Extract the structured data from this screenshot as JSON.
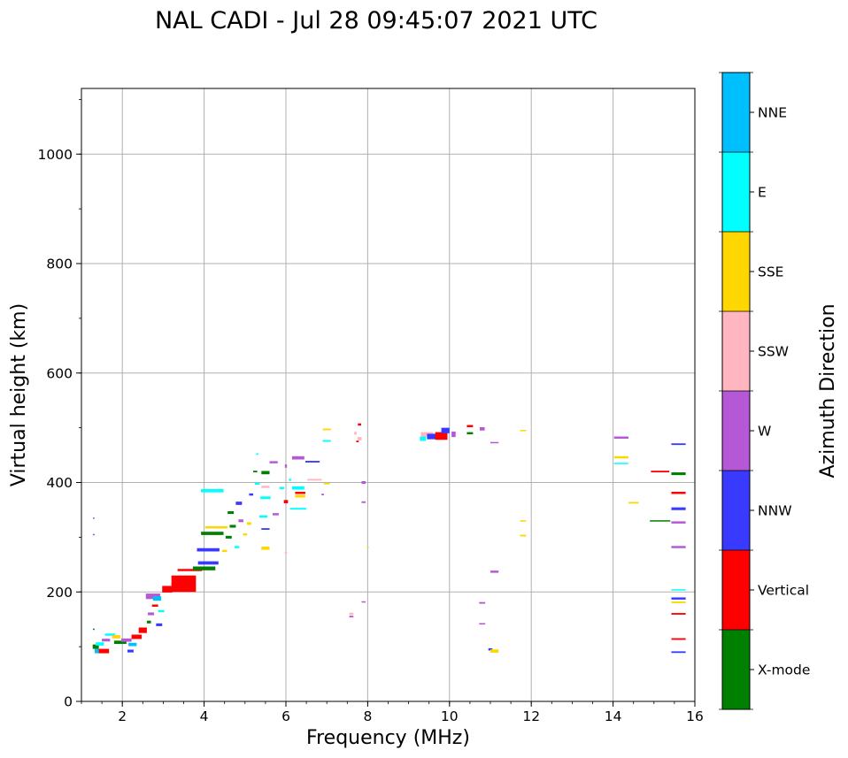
{
  "chart_data": {
    "type": "scatter",
    "title": "NAL CADI - Jul 28 09:45:07 2021 UTC",
    "xlabel": "Frequency (MHz)",
    "ylabel": "Virtual height (km)",
    "xlim": [
      1,
      16
    ],
    "ylim": [
      0,
      1120
    ],
    "xticks": [
      2,
      4,
      6,
      8,
      10,
      12,
      14,
      16
    ],
    "yticks": [
      0,
      200,
      400,
      600,
      800,
      1000
    ],
    "xticks_minor_step": 0.5,
    "yticks_minor_step": 100,
    "grid": true,
    "colorbar": {
      "label": "Azimuth Direction",
      "categories": [
        {
          "name": "X-mode",
          "color": "#008000"
        },
        {
          "name": "Vertical",
          "color": "#ff0000"
        },
        {
          "name": "NNW",
          "color": "#3a3aff"
        },
        {
          "name": "W",
          "color": "#b558d6"
        },
        {
          "name": "SSW",
          "color": "#ffb6c1"
        },
        {
          "name": "SSE",
          "color": "#ffd700"
        },
        {
          "name": "E",
          "color": "#00ffff"
        },
        {
          "name": "NNE",
          "color": "#00bfff"
        }
      ]
    },
    "echoes": [
      {
        "f": 1.3,
        "h": 335,
        "df": 0.03,
        "dh": 2,
        "az": "NNW"
      },
      {
        "f": 1.3,
        "h": 305,
        "df": 0.03,
        "dh": 2,
        "az": "NNW"
      },
      {
        "f": 1.3,
        "h": 132,
        "df": 0.04,
        "dh": 2,
        "az": "X-mode"
      },
      {
        "f": 1.35,
        "h": 100,
        "df": 0.15,
        "dh": 8,
        "az": "X-mode"
      },
      {
        "f": 1.4,
        "h": 92,
        "df": 0.15,
        "dh": 8,
        "az": "NNE"
      },
      {
        "f": 1.55,
        "h": 92,
        "df": 0.25,
        "dh": 8,
        "az": "Vertical"
      },
      {
        "f": 1.45,
        "h": 105,
        "df": 0.2,
        "dh": 6,
        "az": "E"
      },
      {
        "f": 1.6,
        "h": 112,
        "df": 0.2,
        "dh": 5,
        "az": "W"
      },
      {
        "f": 1.7,
        "h": 122,
        "df": 0.25,
        "dh": 4,
        "az": "E"
      },
      {
        "f": 1.85,
        "h": 118,
        "df": 0.2,
        "dh": 6,
        "az": "SSE"
      },
      {
        "f": 1.95,
        "h": 108,
        "df": 0.3,
        "dh": 6,
        "az": "X-mode"
      },
      {
        "f": 2.1,
        "h": 112,
        "df": 0.25,
        "dh": 6,
        "az": "W"
      },
      {
        "f": 2.2,
        "h": 92,
        "df": 0.15,
        "dh": 5,
        "az": "NNW"
      },
      {
        "f": 2.25,
        "h": 104,
        "df": 0.2,
        "dh": 6,
        "az": "NNE"
      },
      {
        "f": 2.35,
        "h": 118,
        "df": 0.25,
        "dh": 8,
        "az": "Vertical"
      },
      {
        "f": 2.5,
        "h": 130,
        "df": 0.2,
        "dh": 10,
        "az": "Vertical"
      },
      {
        "f": 2.65,
        "h": 145,
        "df": 0.1,
        "dh": 5,
        "az": "X-mode"
      },
      {
        "f": 2.7,
        "h": 160,
        "df": 0.15,
        "dh": 5,
        "az": "W"
      },
      {
        "f": 2.75,
        "h": 192,
        "df": 0.35,
        "dh": 10,
        "az": "W"
      },
      {
        "f": 2.85,
        "h": 188,
        "df": 0.2,
        "dh": 8,
        "az": "NNE"
      },
      {
        "f": 2.8,
        "h": 175,
        "df": 0.15,
        "dh": 4,
        "az": "Vertical"
      },
      {
        "f": 2.9,
        "h": 140,
        "df": 0.15,
        "dh": 5,
        "az": "NNW"
      },
      {
        "f": 2.95,
        "h": 165,
        "df": 0.15,
        "dh": 4,
        "az": "E"
      },
      {
        "f": 3.1,
        "h": 205,
        "df": 0.25,
        "dh": 12,
        "az": "Vertical"
      },
      {
        "f": 3.3,
        "h": 215,
        "df": 0.15,
        "dh": 10,
        "az": "Vertical"
      },
      {
        "f": 3.5,
        "h": 215,
        "df": 0.6,
        "dh": 30,
        "az": "Vertical"
      },
      {
        "f": 3.65,
        "h": 240,
        "df": 0.6,
        "dh": 4,
        "az": "Vertical"
      },
      {
        "f": 4.0,
        "h": 243,
        "df": 0.55,
        "dh": 7,
        "az": "X-mode"
      },
      {
        "f": 4.1,
        "h": 253,
        "df": 0.5,
        "dh": 6,
        "az": "NNW"
      },
      {
        "f": 4.1,
        "h": 277,
        "df": 0.55,
        "dh": 6,
        "az": "NNW"
      },
      {
        "f": 4.2,
        "h": 307,
        "df": 0.55,
        "dh": 6,
        "az": "X-mode"
      },
      {
        "f": 4.3,
        "h": 318,
        "df": 0.55,
        "dh": 4,
        "az": "SSE"
      },
      {
        "f": 4.2,
        "h": 385,
        "df": 0.55,
        "dh": 6,
        "az": "E"
      },
      {
        "f": 4.5,
        "h": 275,
        "df": 0.12,
        "dh": 4,
        "az": "SSE"
      },
      {
        "f": 4.6,
        "h": 300,
        "df": 0.15,
        "dh": 5,
        "az": "X-mode"
      },
      {
        "f": 4.7,
        "h": 320,
        "df": 0.15,
        "dh": 5,
        "az": "X-mode"
      },
      {
        "f": 4.65,
        "h": 345,
        "df": 0.15,
        "dh": 5,
        "az": "X-mode"
      },
      {
        "f": 4.8,
        "h": 282,
        "df": 0.12,
        "dh": 4,
        "az": "E"
      },
      {
        "f": 4.9,
        "h": 330,
        "df": 0.12,
        "dh": 5,
        "az": "W"
      },
      {
        "f": 4.85,
        "h": 362,
        "df": 0.15,
        "dh": 6,
        "az": "NNW"
      },
      {
        "f": 5.0,
        "h": 305,
        "df": 0.1,
        "dh": 4,
        "az": "SSE"
      },
      {
        "f": 5.1,
        "h": 325,
        "df": 0.1,
        "dh": 5,
        "az": "SSE"
      },
      {
        "f": 5.15,
        "h": 378,
        "df": 0.1,
        "dh": 4,
        "az": "NNW"
      },
      {
        "f": 5.3,
        "h": 398,
        "df": 0.12,
        "dh": 4,
        "az": "E"
      },
      {
        "f": 5.25,
        "h": 420,
        "df": 0.1,
        "dh": 3,
        "az": "X-mode"
      },
      {
        "f": 5.3,
        "h": 452,
        "df": 0.05,
        "dh": 3,
        "az": "E"
      },
      {
        "f": 5.5,
        "h": 418,
        "df": 0.2,
        "dh": 6,
        "az": "X-mode"
      },
      {
        "f": 5.5,
        "h": 392,
        "df": 0.2,
        "dh": 4,
        "az": "SSW"
      },
      {
        "f": 5.5,
        "h": 372,
        "df": 0.25,
        "dh": 5,
        "az": "E"
      },
      {
        "f": 5.45,
        "h": 338,
        "df": 0.2,
        "dh": 4,
        "az": "E"
      },
      {
        "f": 5.5,
        "h": 315,
        "df": 0.2,
        "dh": 3,
        "az": "NNW"
      },
      {
        "f": 5.5,
        "h": 280,
        "df": 0.2,
        "dh": 6,
        "az": "SSE"
      },
      {
        "f": 5.7,
        "h": 437,
        "df": 0.2,
        "dh": 4,
        "az": "W"
      },
      {
        "f": 5.75,
        "h": 342,
        "df": 0.15,
        "dh": 4,
        "az": "W"
      },
      {
        "f": 5.9,
        "h": 390,
        "df": 0.12,
        "dh": 4,
        "az": "E"
      },
      {
        "f": 6.0,
        "h": 365,
        "df": 0.1,
        "dh": 6,
        "az": "Vertical"
      },
      {
        "f": 6.0,
        "h": 272,
        "df": 0.06,
        "dh": 3,
        "az": "SSW"
      },
      {
        "f": 6.0,
        "h": 430,
        "df": 0.05,
        "dh": 6,
        "az": "W"
      },
      {
        "f": 6.1,
        "h": 405,
        "df": 0.05,
        "dh": 4,
        "az": "E"
      },
      {
        "f": 6.3,
        "h": 445,
        "df": 0.3,
        "dh": 6,
        "az": "W"
      },
      {
        "f": 6.3,
        "h": 390,
        "df": 0.3,
        "dh": 6,
        "az": "E"
      },
      {
        "f": 6.35,
        "h": 381,
        "df": 0.25,
        "dh": 4,
        "az": "Vertical"
      },
      {
        "f": 6.35,
        "h": 375,
        "df": 0.25,
        "dh": 5,
        "az": "SSE"
      },
      {
        "f": 6.3,
        "h": 352,
        "df": 0.4,
        "dh": 3,
        "az": "E"
      },
      {
        "f": 6.65,
        "h": 438,
        "df": 0.35,
        "dh": 3,
        "az": "NNW"
      },
      {
        "f": 6.7,
        "h": 405,
        "df": 0.35,
        "dh": 3,
        "az": "SSW"
      },
      {
        "f": 6.9,
        "h": 378,
        "df": 0.06,
        "dh": 3,
        "az": "W"
      },
      {
        "f": 7.0,
        "h": 497,
        "df": 0.2,
        "dh": 3,
        "az": "SSE"
      },
      {
        "f": 7.0,
        "h": 476,
        "df": 0.2,
        "dh": 3,
        "az": "E"
      },
      {
        "f": 7.0,
        "h": 398,
        "df": 0.15,
        "dh": 3,
        "az": "SSE"
      },
      {
        "f": 7.6,
        "h": 160,
        "df": 0.1,
        "dh": 4,
        "az": "SSW"
      },
      {
        "f": 7.6,
        "h": 155,
        "df": 0.1,
        "dh": 3,
        "az": "W"
      },
      {
        "f": 7.7,
        "h": 490,
        "df": 0.06,
        "dh": 5,
        "az": "SSW"
      },
      {
        "f": 7.8,
        "h": 506,
        "df": 0.08,
        "dh": 4,
        "az": "Vertical"
      },
      {
        "f": 7.8,
        "h": 480,
        "df": 0.1,
        "dh": 6,
        "az": "SSW"
      },
      {
        "f": 7.75,
        "h": 475,
        "df": 0.06,
        "dh": 3,
        "az": "Vertical"
      },
      {
        "f": 7.9,
        "h": 400,
        "df": 0.1,
        "dh": 5,
        "az": "W"
      },
      {
        "f": 7.9,
        "h": 364,
        "df": 0.1,
        "dh": 3,
        "az": "W"
      },
      {
        "f": 7.9,
        "h": 182,
        "df": 0.1,
        "dh": 2,
        "az": "W"
      },
      {
        "f": 8.0,
        "h": 282,
        "df": 0.05,
        "dh": 2,
        "az": "SSE"
      },
      {
        "f": 9.35,
        "h": 480,
        "df": 0.15,
        "dh": 8,
        "az": "E"
      },
      {
        "f": 9.45,
        "h": 488,
        "df": 0.3,
        "dh": 8,
        "az": "SSW"
      },
      {
        "f": 9.6,
        "h": 484,
        "df": 0.3,
        "dh": 10,
        "az": "NNW"
      },
      {
        "f": 9.8,
        "h": 485,
        "df": 0.3,
        "dh": 14,
        "az": "Vertical"
      },
      {
        "f": 9.9,
        "h": 495,
        "df": 0.2,
        "dh": 10,
        "az": "NNW"
      },
      {
        "f": 10.1,
        "h": 488,
        "df": 0.1,
        "dh": 10,
        "az": "W"
      },
      {
        "f": 10.5,
        "h": 503,
        "df": 0.15,
        "dh": 4,
        "az": "Vertical"
      },
      {
        "f": 10.5,
        "h": 490,
        "df": 0.15,
        "dh": 4,
        "az": "X-mode"
      },
      {
        "f": 10.8,
        "h": 498,
        "df": 0.12,
        "dh": 6,
        "az": "W"
      },
      {
        "f": 10.8,
        "h": 180,
        "df": 0.15,
        "dh": 3,
        "az": "W"
      },
      {
        "f": 10.8,
        "h": 142,
        "df": 0.15,
        "dh": 2,
        "az": "W"
      },
      {
        "f": 11.0,
        "h": 95,
        "df": 0.1,
        "dh": 4,
        "az": "NNW"
      },
      {
        "f": 11.1,
        "h": 92,
        "df": 0.2,
        "dh": 6,
        "az": "SSE"
      },
      {
        "f": 11.1,
        "h": 473,
        "df": 0.2,
        "dh": 2,
        "az": "W"
      },
      {
        "f": 11.1,
        "h": 237,
        "df": 0.2,
        "dh": 4,
        "az": "W"
      },
      {
        "f": 11.8,
        "h": 495,
        "df": 0.15,
        "dh": 2,
        "az": "SSE"
      },
      {
        "f": 11.8,
        "h": 330,
        "df": 0.15,
        "dh": 2,
        "az": "SSE"
      },
      {
        "f": 11.8,
        "h": 303,
        "df": 0.15,
        "dh": 3,
        "az": "SSE"
      },
      {
        "f": 14.2,
        "h": 482,
        "df": 0.35,
        "dh": 4,
        "az": "W"
      },
      {
        "f": 14.2,
        "h": 446,
        "df": 0.35,
        "dh": 4,
        "az": "SSE"
      },
      {
        "f": 14.2,
        "h": 435,
        "df": 0.35,
        "dh": 2,
        "az": "E"
      },
      {
        "f": 14.5,
        "h": 363,
        "df": 0.25,
        "dh": 3,
        "az": "SSE"
      },
      {
        "f": 15.15,
        "h": 420,
        "df": 0.45,
        "dh": 3,
        "az": "Vertical"
      },
      {
        "f": 15.15,
        "h": 330,
        "df": 0.5,
        "dh": 2,
        "az": "X-mode"
      },
      {
        "f": 15.6,
        "h": 470,
        "df": 0.35,
        "dh": 3,
        "az": "NNW"
      },
      {
        "f": 15.6,
        "h": 416,
        "df": 0.35,
        "dh": 5,
        "az": "X-mode"
      },
      {
        "f": 15.6,
        "h": 381,
        "df": 0.35,
        "dh": 4,
        "az": "Vertical"
      },
      {
        "f": 15.6,
        "h": 352,
        "df": 0.35,
        "dh": 5,
        "az": "NNW"
      },
      {
        "f": 15.6,
        "h": 327,
        "df": 0.35,
        "dh": 4,
        "az": "W"
      },
      {
        "f": 15.6,
        "h": 282,
        "df": 0.35,
        "dh": 4,
        "az": "W"
      },
      {
        "f": 15.6,
        "h": 204,
        "df": 0.35,
        "dh": 2,
        "az": "E"
      },
      {
        "f": 15.6,
        "h": 188,
        "df": 0.35,
        "dh": 4,
        "az": "NNW"
      },
      {
        "f": 15.6,
        "h": 181,
        "df": 0.35,
        "dh": 3,
        "az": "SSE"
      },
      {
        "f": 15.6,
        "h": 160,
        "df": 0.35,
        "dh": 3,
        "az": "Vertical"
      },
      {
        "f": 15.6,
        "h": 114,
        "df": 0.35,
        "dh": 3,
        "az": "Vertical"
      },
      {
        "f": 15.6,
        "h": 90,
        "df": 0.35,
        "dh": 3,
        "az": "NNW"
      }
    ]
  }
}
